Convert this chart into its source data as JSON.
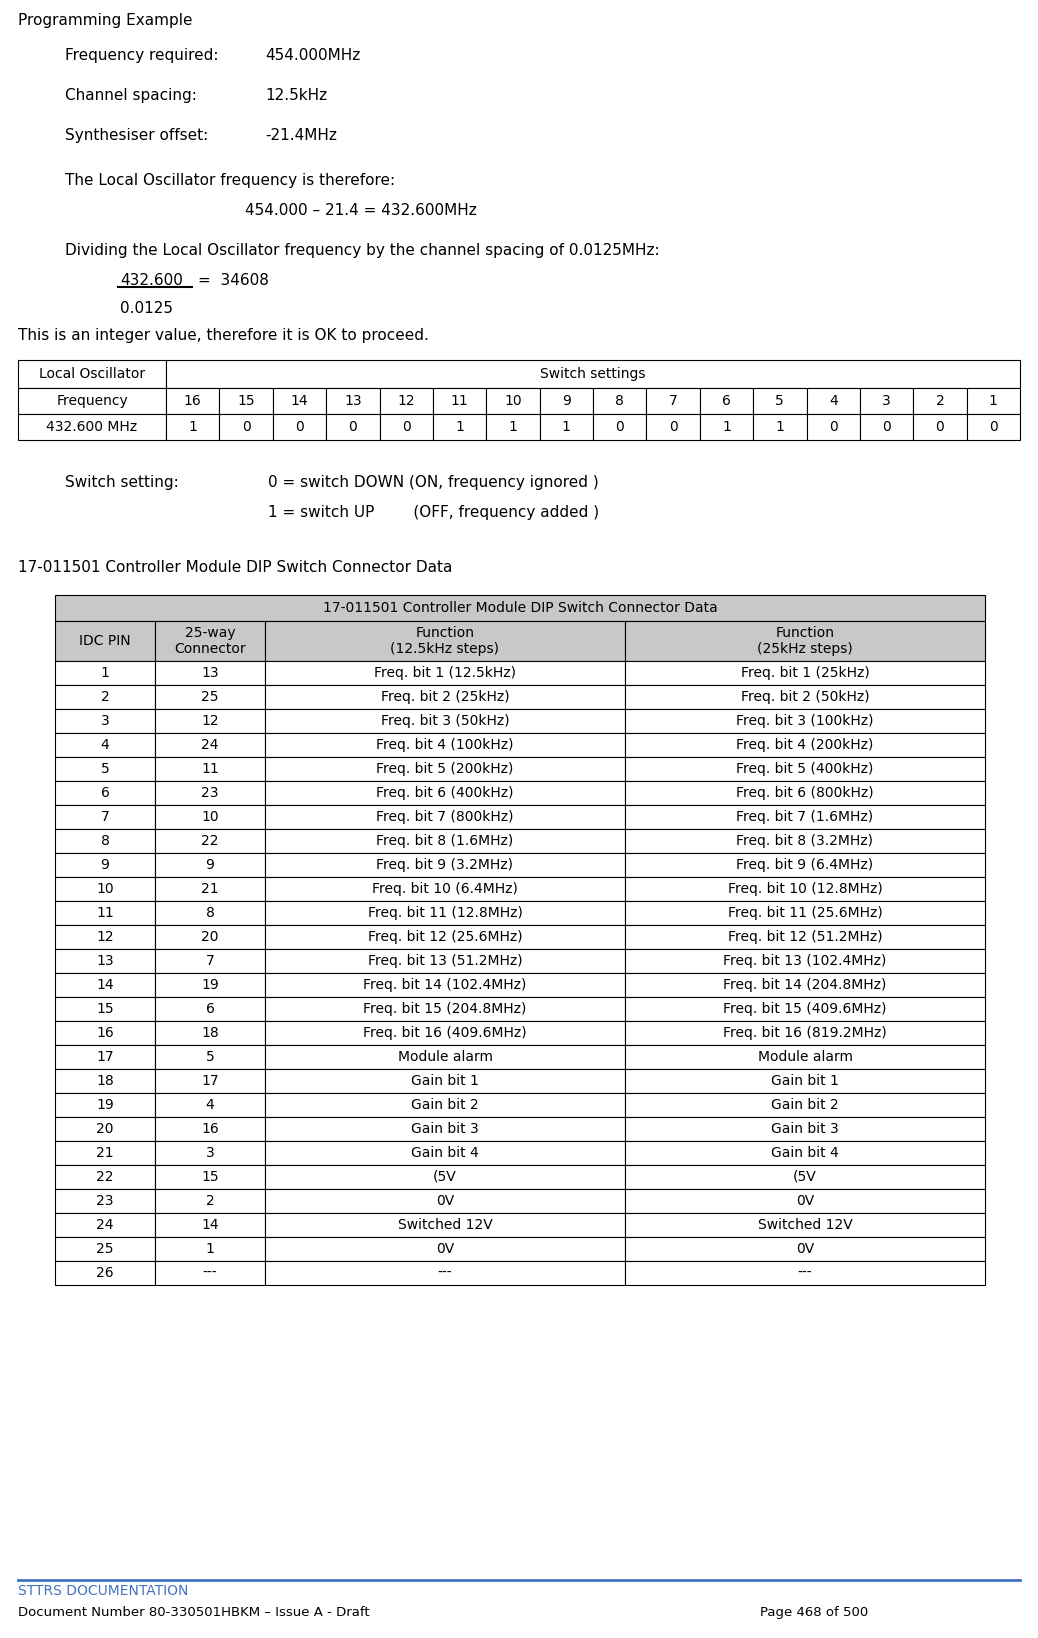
{
  "title": "Programming Example",
  "freq_required_label": "Frequency required:",
  "freq_required_value": "454.000MHz",
  "channel_spacing_label": "Channel spacing:",
  "channel_spacing_value": "12.5kHz",
  "synth_offset_label": "Synthesiser offset:",
  "synth_offset_value": "-21.4MHz",
  "lo_text1": "The Local Oscillator frequency is therefore:",
  "lo_text2": "454.000 – 21.4 = 432.600MHz",
  "dividing_text": "Dividing the Local Oscillator frequency by the channel spacing of 0.0125MHz:",
  "fraction_num": "432.600",
  "fraction_eq": "=  34608",
  "fraction_den": "0.0125",
  "integer_text": "This is an integer value, therefore it is OK to proceed.",
  "switch_table_header_left1": "Local Oscillator",
  "switch_table_header_left2": "Frequency",
  "switch_table_header_right": "Switch settings",
  "switch_bit_labels": [
    "16",
    "15",
    "14",
    "13",
    "12",
    "11",
    "10",
    "9",
    "8",
    "7",
    "6",
    "5",
    "4",
    "3",
    "2",
    "1"
  ],
  "switch_freq_label": "432.600 MHz",
  "switch_values": [
    "1",
    "0",
    "0",
    "0",
    "0",
    "1",
    "1",
    "1",
    "0",
    "0",
    "1",
    "1",
    "0",
    "0",
    "0",
    "0"
  ],
  "switch_setting_label": "Switch setting:",
  "switch_setting_0": "0 = switch DOWN (ON, frequency ignored )",
  "switch_setting_1": "1 = switch UP        (OFF, frequency added )",
  "dip_title_label": "17-011501 Controller Module DIP Switch Connector Data",
  "dip_table_title": "17-011501 Controller Module DIP Switch Connector Data",
  "dip_col_headers": [
    "IDC PIN",
    "25-way\nConnector",
    "Function\n(12.5kHz steps)",
    "Function\n(25kHz steps)"
  ],
  "dip_rows": [
    [
      "1",
      "13",
      "Freq. bit 1 (12.5kHz)",
      "Freq. bit 1 (25kHz)"
    ],
    [
      "2",
      "25",
      "Freq. bit 2 (25kHz)",
      "Freq. bit 2 (50kHz)"
    ],
    [
      "3",
      "12",
      "Freq. bit 3 (50kHz)",
      "Freq. bit 3 (100kHz)"
    ],
    [
      "4",
      "24",
      "Freq. bit 4 (100kHz)",
      "Freq. bit 4 (200kHz)"
    ],
    [
      "5",
      "11",
      "Freq. bit 5 (200kHz)",
      "Freq. bit 5 (400kHz)"
    ],
    [
      "6",
      "23",
      "Freq. bit 6 (400kHz)",
      "Freq. bit 6 (800kHz)"
    ],
    [
      "7",
      "10",
      "Freq. bit 7 (800kHz)",
      "Freq. bit 7 (1.6MHz)"
    ],
    [
      "8",
      "22",
      "Freq. bit 8 (1.6MHz)",
      "Freq. bit 8 (3.2MHz)"
    ],
    [
      "9",
      "9",
      "Freq. bit 9 (3.2MHz)",
      "Freq. bit 9 (6.4MHz)"
    ],
    [
      "10",
      "21",
      "Freq. bit 10 (6.4MHz)",
      "Freq. bit 10 (12.8MHz)"
    ],
    [
      "11",
      "8",
      "Freq. bit 11 (12.8MHz)",
      "Freq. bit 11 (25.6MHz)"
    ],
    [
      "12",
      "20",
      "Freq. bit 12 (25.6MHz)",
      "Freq. bit 12 (51.2MHz)"
    ],
    [
      "13",
      "7",
      "Freq. bit 13 (51.2MHz)",
      "Freq. bit 13 (102.4MHz)"
    ],
    [
      "14",
      "19",
      "Freq. bit 14 (102.4MHz)",
      "Freq. bit 14 (204.8MHz)"
    ],
    [
      "15",
      "6",
      "Freq. bit 15 (204.8MHz)",
      "Freq. bit 15 (409.6MHz)"
    ],
    [
      "16",
      "18",
      "Freq. bit 16 (409.6MHz)",
      "Freq. bit 16 (819.2MHz)"
    ],
    [
      "17",
      "5",
      "Module alarm",
      "Module alarm"
    ],
    [
      "18",
      "17",
      "Gain bit 1",
      "Gain bit 1"
    ],
    [
      "19",
      "4",
      "Gain bit 2",
      "Gain bit 2"
    ],
    [
      "20",
      "16",
      "Gain bit 3",
      "Gain bit 3"
    ],
    [
      "21",
      "3",
      "Gain bit 4",
      "Gain bit 4"
    ],
    [
      "22",
      "15",
      "(5V",
      "(5V"
    ],
    [
      "23",
      "2",
      "0V",
      "0V"
    ],
    [
      "24",
      "14",
      "Switched 12V",
      "Switched 12V"
    ],
    [
      "25",
      "1",
      "0V",
      "0V"
    ],
    [
      "26",
      "---",
      "---",
      "---"
    ]
  ],
  "footer_line_color": "#4472c4",
  "footer_text": "STTRS DOCUMENTATION",
  "footer_doc": "Document Number 80-330501HBKM – Issue A - Draft",
  "footer_page": "Page 468 of 500",
  "bg_color": "#ffffff"
}
